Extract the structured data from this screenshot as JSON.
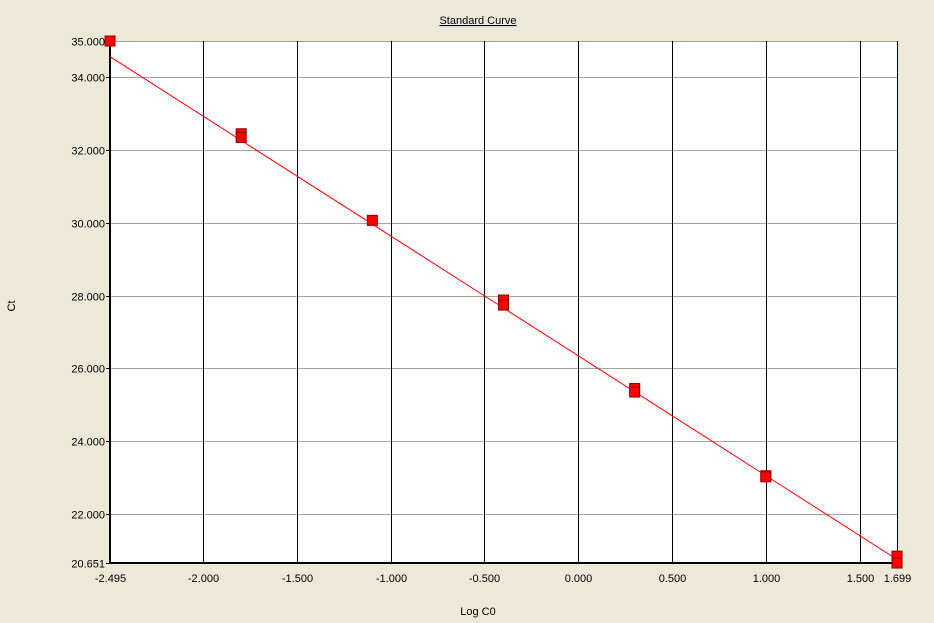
{
  "chart_data": {
    "type": "scatter",
    "title": "Standard Curve",
    "xlabel": "Log C0",
    "ylabel": "Ct",
    "xlim": [
      -2.495,
      1.699
    ],
    "ylim": [
      20.651,
      35.0
    ],
    "x_ticks": [
      "-2.495",
      "-2.000",
      "-1.500",
      "-1.000",
      "-0.500",
      "0.000",
      "0.500",
      "1.000",
      "1.500",
      "1.699"
    ],
    "x_tick_values": [
      -2.495,
      -2.0,
      -1.5,
      -1.0,
      -0.5,
      0.0,
      0.5,
      1.0,
      1.5,
      1.699
    ],
    "y_ticks": [
      "20.651",
      "22.000",
      "24.000",
      "26.000",
      "28.000",
      "30.000",
      "32.000",
      "34.000",
      "35.000"
    ],
    "y_tick_values": [
      20.651,
      22,
      24,
      26,
      28,
      30,
      32,
      34,
      35
    ],
    "grid": true,
    "series": [
      {
        "type": "scatter",
        "color": "#FF0000",
        "points": [
          [
            -2.495,
            35.0
          ],
          [
            -1.796,
            32.45
          ],
          [
            -1.796,
            32.35
          ],
          [
            -1.097,
            30.07
          ],
          [
            -0.398,
            27.88
          ],
          [
            -0.398,
            27.74
          ],
          [
            0.301,
            25.45
          ],
          [
            0.301,
            25.35
          ],
          [
            1.0,
            23.05
          ],
          [
            1.0,
            23.02
          ],
          [
            1.699,
            20.84
          ],
          [
            1.699,
            20.65
          ]
        ]
      },
      {
        "type": "line",
        "color": "#FF0000",
        "points": [
          [
            -2.495,
            34.57
          ],
          [
            1.699,
            20.75
          ]
        ]
      }
    ]
  }
}
